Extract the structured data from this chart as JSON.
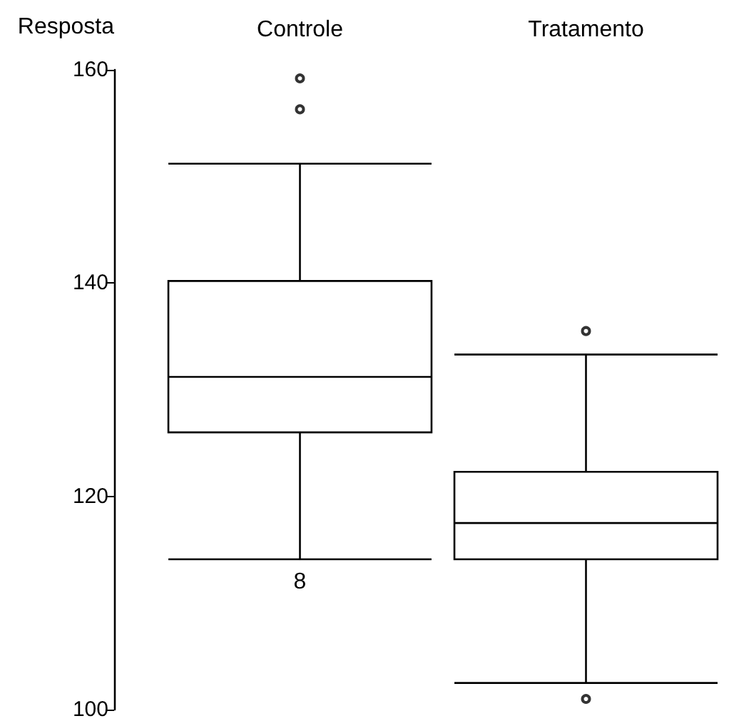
{
  "chart_data": {
    "type": "box",
    "ylabel": "Resposta",
    "categories": [
      "Controle",
      "Tratamento"
    ],
    "color": "#000000",
    "boxes": [
      {
        "low": 114.1,
        "q1": 126.0,
        "median": 131.2,
        "q3": 140.2,
        "high": 151.2,
        "outliers": [
          159.2,
          156.3
        ]
      },
      {
        "low": 102.5,
        "q1": 114.1,
        "median": 117.5,
        "q3": 122.3,
        "high": 133.3,
        "outliers": [
          135.5,
          101.0
        ]
      }
    ],
    "ylim": [
      100,
      160
    ],
    "yticks": [
      100,
      120,
      140,
      160
    ],
    "annotations": [
      {
        "text": "8",
        "x": "Controle",
        "y": 114.1
      }
    ]
  }
}
